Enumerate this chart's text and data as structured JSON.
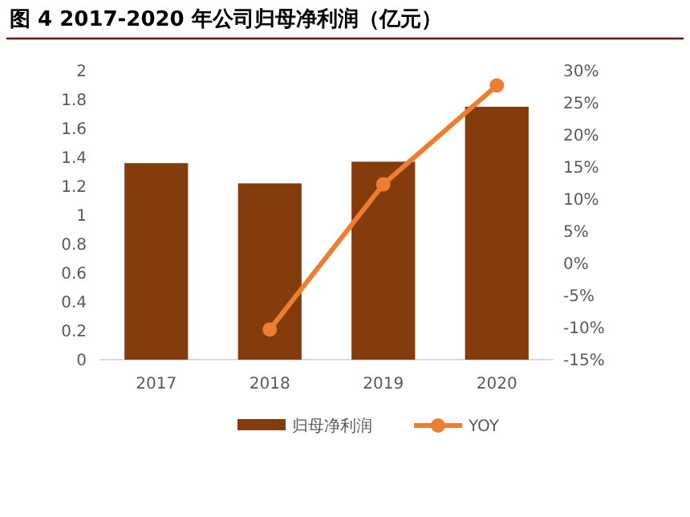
{
  "chart_data": {
    "type": "bar",
    "title": "图 4 2017-2020 年公司归母净利润（亿元）",
    "categories": [
      "2017",
      "2018",
      "2019",
      "2020"
    ],
    "series": [
      {
        "name": "归母净利润",
        "color": "#843c0c",
        "values": [
          1.36,
          1.22,
          1.37,
          1.75
        ]
      },
      {
        "name": "YOY",
        "type": "line",
        "axis": "y2",
        "color": "#ed7d31",
        "marker": "circle",
        "values": [
          null,
          -10.3,
          12.3,
          27.7
        ]
      }
    ],
    "ylim": [
      0,
      2
    ],
    "yticks": [
      0,
      0.2,
      0.4,
      0.6,
      0.8,
      1,
      1.2,
      1.4,
      1.6,
      1.8,
      2
    ],
    "y2lim": [
      -15,
      30
    ],
    "y2ticks": [
      {
        "value": -15,
        "label": "-15%"
      },
      {
        "value": -10,
        "label": "-10%"
      },
      {
        "value": -5,
        "label": "-5%"
      },
      {
        "value": 0,
        "label": "0%"
      },
      {
        "value": 5,
        "label": "5%"
      },
      {
        "value": 10,
        "label": "10%"
      },
      {
        "value": 15,
        "label": "15%"
      },
      {
        "value": 20,
        "label": "20%"
      },
      {
        "value": 25,
        "label": "25%"
      },
      {
        "value": 30,
        "label": "30%"
      }
    ],
    "legend": "bottom"
  }
}
